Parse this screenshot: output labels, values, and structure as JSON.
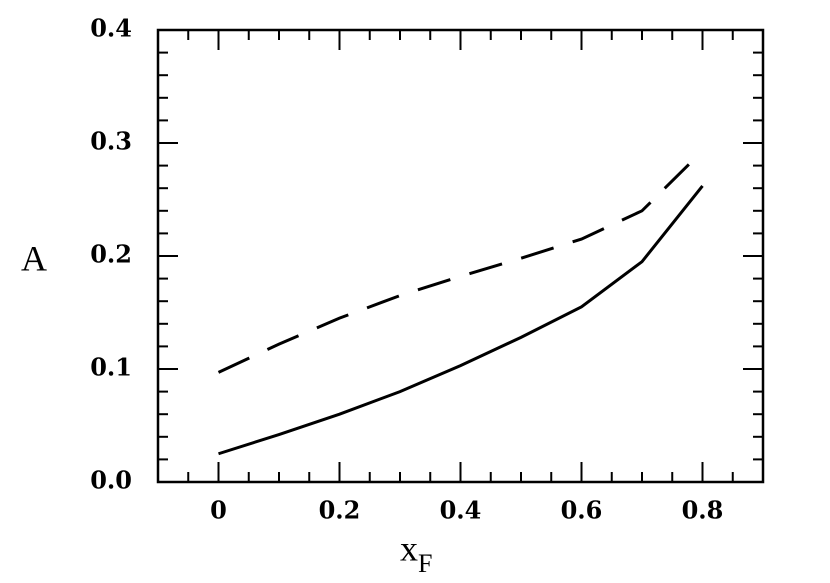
{
  "chart_data": {
    "type": "line",
    "ylabel": "A",
    "xlabel": "x",
    "xlabel_sub": "F",
    "x": [
      0,
      0.1,
      0.2,
      0.3,
      0.4,
      0.5,
      0.6,
      0.7,
      0.8
    ],
    "series": [
      {
        "color": "#000000",
        "dash": "solid",
        "values": [
          0.025,
          0.042,
          0.06,
          0.08,
          0.103,
          0.128,
          0.155,
          0.195,
          0.262
        ]
      },
      {
        "color": "#000000",
        "dash": "dashed",
        "values": [
          0.097,
          0.122,
          0.145,
          0.165,
          0.182,
          0.198,
          0.215,
          0.24,
          0.293
        ]
      }
    ],
    "xlim": [
      -0.1,
      0.9
    ],
    "ylim": [
      0,
      0.4
    ],
    "xticks": [
      {
        "value": 0,
        "label": "0"
      },
      0.2,
      0.4,
      0.6,
      0.8
    ],
    "yticks": [
      {
        "value": 0,
        "label": "0.0"
      },
      0.1,
      0.2,
      0.3,
      0.4
    ],
    "xminorticks": [
      -0.05,
      0.05,
      0.1,
      0.15,
      0.25,
      0.3,
      0.35,
      0.45,
      0.5,
      0.55,
      0.65,
      0.7,
      0.75,
      0.85
    ],
    "yminorticks": [
      0.02,
      0.04,
      0.06,
      0.08,
      0.12,
      0.14,
      0.16,
      0.18,
      0.22,
      0.24,
      0.26,
      0.28,
      0.32,
      0.34,
      0.36,
      0.38
    ],
    "grid": false
  }
}
